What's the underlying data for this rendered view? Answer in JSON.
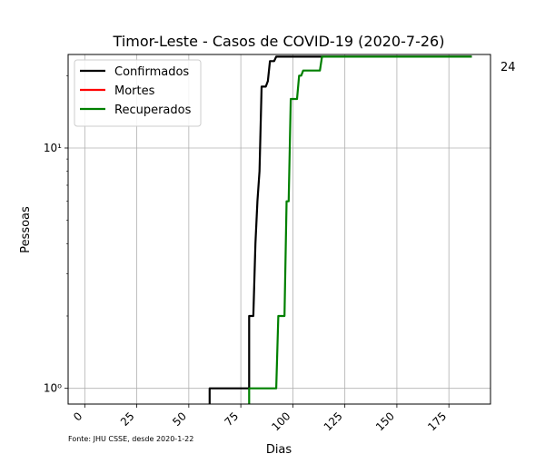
{
  "chart_data": {
    "type": "line",
    "title": "Timor-Leste - Casos de COVID-19 (2020-7-26)",
    "xlabel": "Dias",
    "ylabel": "Pessoas",
    "xlim": [
      -8,
      195
    ],
    "ylim": [
      0.86,
      24.5
    ],
    "yscale": "log",
    "grid": true,
    "legend_position": "top-left",
    "x_ticks": [
      0,
      25,
      50,
      75,
      100,
      125,
      150,
      175
    ],
    "y_ticks": [
      {
        "value": 1,
        "label": "10⁰"
      },
      {
        "value": 10,
        "label": "10¹"
      }
    ],
    "end_label": "24",
    "source": "Fonte: JHU CSSE, desde 2020-1-22",
    "series": [
      {
        "name": "Confirmados",
        "color": "#000000",
        "points": [
          [
            60,
            0.86
          ],
          [
            60,
            1
          ],
          [
            79,
            1
          ],
          [
            79,
            2
          ],
          [
            81,
            2
          ],
          [
            82,
            4
          ],
          [
            83,
            6
          ],
          [
            84,
            8
          ],
          [
            85,
            18
          ],
          [
            87,
            18
          ],
          [
            88,
            19
          ],
          [
            89,
            23
          ],
          [
            91,
            23
          ],
          [
            92,
            24
          ],
          [
            186,
            24
          ]
        ]
      },
      {
        "name": "Mortes",
        "color": "#ff0000",
        "points": []
      },
      {
        "name": "Recuperados",
        "color": "#008000",
        "points": [
          [
            79,
            0.86
          ],
          [
            79,
            1
          ],
          [
            92,
            1
          ],
          [
            93,
            2
          ],
          [
            96,
            2
          ],
          [
            97,
            6
          ],
          [
            98,
            6
          ],
          [
            99,
            16
          ],
          [
            102,
            16
          ],
          [
            103,
            20
          ],
          [
            104,
            20
          ],
          [
            105,
            21
          ],
          [
            113,
            21
          ],
          [
            114,
            24
          ],
          [
            186,
            24
          ]
        ]
      }
    ]
  }
}
